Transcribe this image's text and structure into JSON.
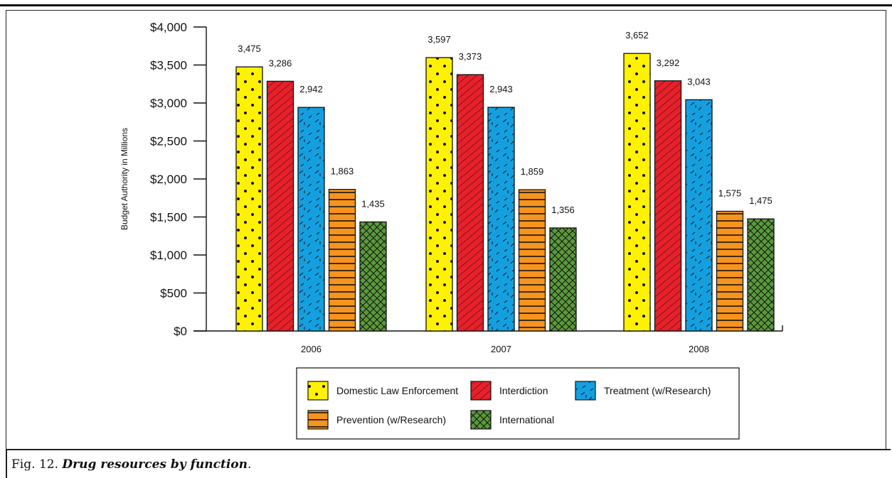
{
  "chart_data": {
    "type": "bar",
    "title": "",
    "ylabel": "Budget Authority in Millions",
    "xlabel": "",
    "categories": [
      "2006",
      "2007",
      "2008"
    ],
    "ylim": [
      0,
      4000
    ],
    "yticks": [
      "$0",
      "$500",
      "$1,000",
      "$1,500",
      "$2,000",
      "$2,500",
      "$3,000",
      "$3,500",
      "$4,000"
    ],
    "ytick_values": [
      0,
      500,
      1000,
      1500,
      2000,
      2500,
      3000,
      3500,
      4000
    ],
    "grid": false,
    "legend_position": "bottom-center",
    "series": [
      {
        "name": "Domestic Law Enforcement",
        "values": [
          3475,
          3597,
          3652
        ],
        "labels": [
          "3,475",
          "3,597",
          "3,652"
        ],
        "color": "#fff200",
        "pattern": "dots"
      },
      {
        "name": "Interdiction",
        "values": [
          3286,
          3373,
          3292
        ],
        "labels": [
          "3,286",
          "3,373",
          "3,292"
        ],
        "color": "#e8202a",
        "pattern": "diagonal-lines"
      },
      {
        "name": "Treatment (w/Research)",
        "values": [
          2942,
          2943,
          3043
        ],
        "labels": [
          "2,942",
          "2,943",
          "3,043"
        ],
        "color": "#14a0e0",
        "pattern": "dashes"
      },
      {
        "name": "Prevention (w/Research)",
        "values": [
          1863,
          1859,
          1575
        ],
        "labels": [
          "1,863",
          "1,859",
          "1,575"
        ],
        "color": "#f7941d",
        "pattern": "horizontal-lines"
      },
      {
        "name": "International",
        "values": [
          1435,
          1356,
          1475
        ],
        "labels": [
          "1,435",
          "1,356",
          "1,475"
        ],
        "color": "#5a9a3a",
        "pattern": "crosshatch"
      }
    ]
  },
  "caption": {
    "prefix": "Fig. ",
    "number": "12.",
    "text": "Drug resources by function",
    "suffix": "."
  }
}
